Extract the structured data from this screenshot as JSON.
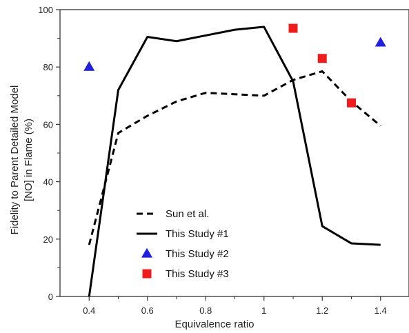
{
  "chart_data": {
    "type": "line",
    "xlabel": "Equivalence ratio",
    "ylabel_line1": "Fidelity to Parent Detailed Model",
    "ylabel_line2": "[NO] in Flame (%)",
    "xlim": [
      0.3,
      1.5
    ],
    "ylim": [
      0,
      100
    ],
    "xticks": [
      0.4,
      0.6,
      0.8,
      1.0,
      1.2,
      1.4
    ],
    "xtick_labels": [
      "0.4",
      "0.6",
      "0.8",
      "1",
      "1.2",
      "1.4"
    ],
    "yticks": [
      0,
      20,
      40,
      60,
      80,
      100
    ],
    "ytick_labels": [
      "0",
      "20",
      "40",
      "60",
      "80",
      "100"
    ],
    "legend_position": "bottom-left",
    "grid": false,
    "series": [
      {
        "name": "Sun et al.",
        "kind": "line",
        "style": "dashed",
        "color": "#000000",
        "x": [
          0.4,
          0.5,
          0.6,
          0.7,
          0.8,
          0.9,
          1.0,
          1.1,
          1.2,
          1.3,
          1.4
        ],
        "y": [
          18,
          57,
          63,
          68,
          71,
          70.5,
          70,
          75.5,
          78.5,
          68,
          59.5
        ]
      },
      {
        "name": "This Study #1",
        "kind": "line",
        "style": "solid",
        "color": "#000000",
        "x": [
          0.4,
          0.5,
          0.6,
          0.7,
          0.8,
          0.9,
          1.0,
          1.1,
          1.2,
          1.3,
          1.4
        ],
        "y": [
          0,
          72,
          90.5,
          89,
          91,
          93,
          94,
          75,
          24.5,
          18.5,
          18
        ]
      },
      {
        "name": "This Study #2",
        "kind": "scatter",
        "marker": "triangle",
        "color": "#1f1fdd",
        "x": [
          0.4,
          1.4
        ],
        "y": [
          80,
          88.5
        ]
      },
      {
        "name": "This Study #3",
        "kind": "scatter",
        "marker": "square",
        "color": "#ee1c1c",
        "x": [
          1.1,
          1.2,
          1.3
        ],
        "y": [
          93.5,
          83,
          67.5
        ]
      }
    ]
  }
}
